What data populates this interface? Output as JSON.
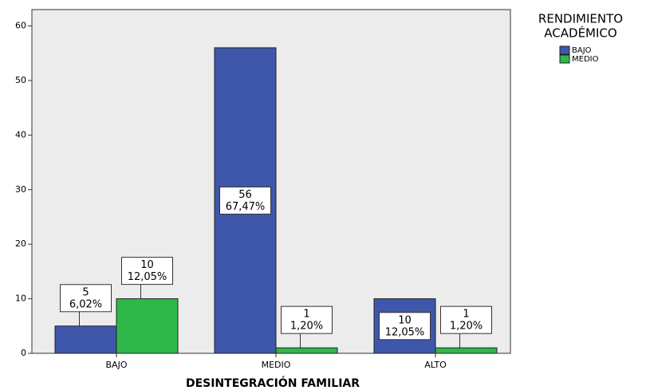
{
  "chart_data": {
    "type": "bar",
    "x_label": "DESINTEGRACIÓN FAMILIAR",
    "legend_title": [
      "RENDIMIENTO",
      "ACADÉMICO"
    ],
    "categories": [
      "BAJO",
      "MEDIO",
      "ALTO"
    ],
    "series": [
      {
        "name": "BAJO",
        "color": "#3e57aa",
        "values": [
          5,
          56,
          10
        ],
        "percentages": [
          "6,02%",
          "67,47%",
          "12,05%"
        ]
      },
      {
        "name": "MEDIO",
        "color": "#2eb84a",
        "values": [
          10,
          1,
          1
        ],
        "percentages": [
          "12,05%",
          "1,20%",
          "1,20%"
        ]
      }
    ],
    "ylim": [
      0,
      63
    ],
    "yticks": [
      0,
      10,
      20,
      30,
      40,
      50,
      60
    ],
    "grid": false,
    "legend": "right"
  }
}
